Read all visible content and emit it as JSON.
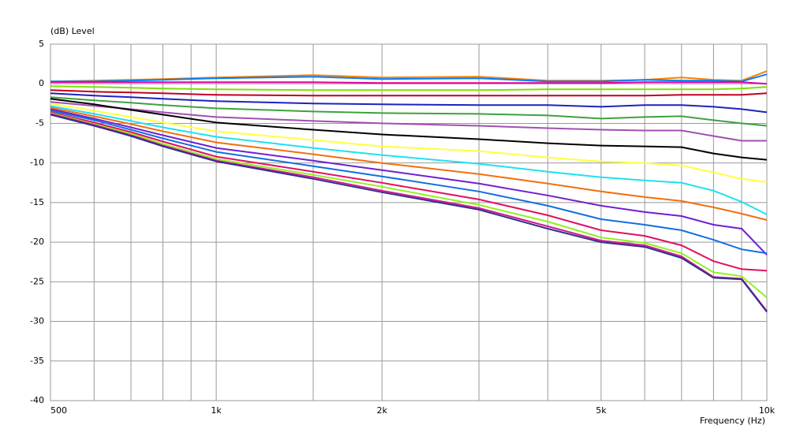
{
  "chart_data": {
    "type": "line",
    "y_label": "(dB)  Level",
    "x_label": "Frequency  (Hz)",
    "log_x": true,
    "grid": true,
    "x": [
      500,
      600,
      700,
      800,
      1000,
      1500,
      2000,
      3000,
      4000,
      5000,
      6000,
      7000,
      8000,
      9000,
      10000
    ],
    "xlim": [
      500,
      10000
    ],
    "xticks": [
      500,
      {
        "value": 1000,
        "label": "1k"
      },
      {
        "value": 2000,
        "label": "2k"
      },
      {
        "value": 5000,
        "label": "5k"
      },
      {
        "value": 10000,
        "label": "10k"
      }
    ],
    "xminor": [
      600,
      700,
      800,
      900,
      1500,
      3000,
      4000,
      6000,
      7000,
      8000,
      9000
    ],
    "ylim": [
      -40,
      5
    ],
    "yticks": [
      5,
      0,
      -5,
      -10,
      -15,
      -20,
      -25,
      -30,
      -35,
      -40
    ],
    "series": [
      {
        "color": "#ff8000",
        "values": [
          0.3,
          0.4,
          0.5,
          0.6,
          0.8,
          1.1,
          0.8,
          0.9,
          0.4,
          0.4,
          0.5,
          0.8,
          0.5,
          0.4,
          1.6
        ]
      },
      {
        "color": "#0080ff",
        "values": [
          0.3,
          0.3,
          0.4,
          0.5,
          0.7,
          0.9,
          0.6,
          0.7,
          0.3,
          0.3,
          0.5,
          0.4,
          0.4,
          0.3,
          1.2
        ]
      },
      {
        "color": "#e000a0",
        "values": [
          0.2,
          0.2,
          0.2,
          0.2,
          0.2,
          0.2,
          0.1,
          0.1,
          0.1,
          0.1,
          0.2,
          0.2,
          0.2,
          0.2,
          0
        ]
      },
      {
        "color": "#80e000",
        "values": [
          -0.3,
          -0.4,
          -0.5,
          -0.6,
          -0.7,
          -0.8,
          -0.8,
          -0.8,
          -0.7,
          -0.7,
          -0.7,
          -0.7,
          -0.7,
          -0.6,
          -0.4
        ]
      },
      {
        "color": "#c00020",
        "values": [
          -0.8,
          -1.0,
          -1.1,
          -1.2,
          -1.4,
          -1.5,
          -1.5,
          -1.5,
          -1.5,
          -1.5,
          -1.5,
          -1.4,
          -1.4,
          -1.4,
          -1.2
        ]
      },
      {
        "color": "#2020c0",
        "values": [
          -1.2,
          -1.5,
          -1.7,
          -1.9,
          -2.2,
          -2.5,
          -2.6,
          -2.7,
          -2.7,
          -2.9,
          -2.7,
          -2.7,
          -2.9,
          -3.2,
          -3.6
        ]
      },
      {
        "color": "#40a040",
        "values": [
          -1.7,
          -2.1,
          -2.4,
          -2.7,
          -3.1,
          -3.5,
          -3.7,
          -3.8,
          -4.0,
          -4.4,
          -4.2,
          -4.1,
          -4.6,
          -5.0,
          -5.3
        ]
      },
      {
        "color": "#a050b0",
        "values": [
          -2.3,
          -2.8,
          -3.2,
          -3.6,
          -4.2,
          -4.7,
          -5.0,
          -5.3,
          -5.6,
          -5.8,
          -5.9,
          -5.9,
          -6.6,
          -7.2,
          -7.2
        ]
      },
      {
        "color": "#000000",
        "values": [
          -1.9,
          -2.6,
          -3.3,
          -3.9,
          -4.9,
          -5.8,
          -6.4,
          -7.0,
          -7.5,
          -7.8,
          -7.9,
          -8.0,
          -8.8,
          -9.3,
          -9.6
        ]
      },
      {
        "color": "#ffff40",
        "values": [
          -2.5,
          -3.4,
          -4.2,
          -4.9,
          -6.0,
          -7.1,
          -7.9,
          -8.5,
          -9.3,
          -9.8,
          -10.0,
          -10.3,
          -11.2,
          -12.0,
          -12.4
        ]
      },
      {
        "color": "#20e0f0",
        "values": [
          -2.8,
          -3.8,
          -4.7,
          -5.5,
          -6.7,
          -8.1,
          -9.0,
          -10.1,
          -11.1,
          -11.8,
          -12.2,
          -12.5,
          -13.5,
          -14.9,
          -16.5
        ]
      },
      {
        "color": "#f07010",
        "values": [
          -3.0,
          -4.1,
          -5.1,
          -6.0,
          -7.4,
          -8.9,
          -10.0,
          -11.4,
          -12.6,
          -13.6,
          -14.3,
          -14.8,
          -15.6,
          -16.4,
          -17.2
        ]
      },
      {
        "color": "#7020d0",
        "values": [
          -3.2,
          -4.4,
          -5.5,
          -6.5,
          -8.1,
          -9.7,
          -10.9,
          -12.6,
          -14.1,
          -15.4,
          -16.2,
          -16.7,
          -17.8,
          -18.3,
          -21.6
        ]
      },
      {
        "color": "#1070e0",
        "values": [
          -3.4,
          -4.6,
          -5.8,
          -6.9,
          -8.6,
          -10.4,
          -11.7,
          -13.6,
          -15.4,
          -17.1,
          -17.8,
          -18.5,
          -19.7,
          -20.9,
          -21.4
        ]
      },
      {
        "color": "#e01060",
        "values": [
          -3.6,
          -4.9,
          -6.1,
          -7.3,
          -9.2,
          -11.1,
          -12.5,
          -14.6,
          -16.6,
          -18.5,
          -19.2,
          -20.4,
          -22.4,
          -23.4,
          -23.6
        ]
      },
      {
        "color": "#90f020",
        "values": [
          -3.7,
          -5.1,
          -6.3,
          -7.6,
          -9.5,
          -11.5,
          -13.0,
          -15.3,
          -17.4,
          -19.4,
          -20.1,
          -21.4,
          -23.8,
          -24.3,
          -27.0
        ]
      },
      {
        "color": "#d01890",
        "values": [
          -3.8,
          -5.2,
          -6.5,
          -7.8,
          -9.7,
          -11.8,
          -13.5,
          -15.7,
          -18.0,
          -19.8,
          -20.4,
          -21.8,
          -24.4,
          -24.6,
          -28.7
        ]
      },
      {
        "color": "#303090",
        "values": [
          -3.9,
          -5.3,
          -6.6,
          -7.9,
          -9.8,
          -12.0,
          -13.7,
          -15.9,
          -18.3,
          -20.0,
          -20.6,
          -22.0,
          -24.5,
          -24.7,
          -28.8
        ]
      }
    ]
  }
}
